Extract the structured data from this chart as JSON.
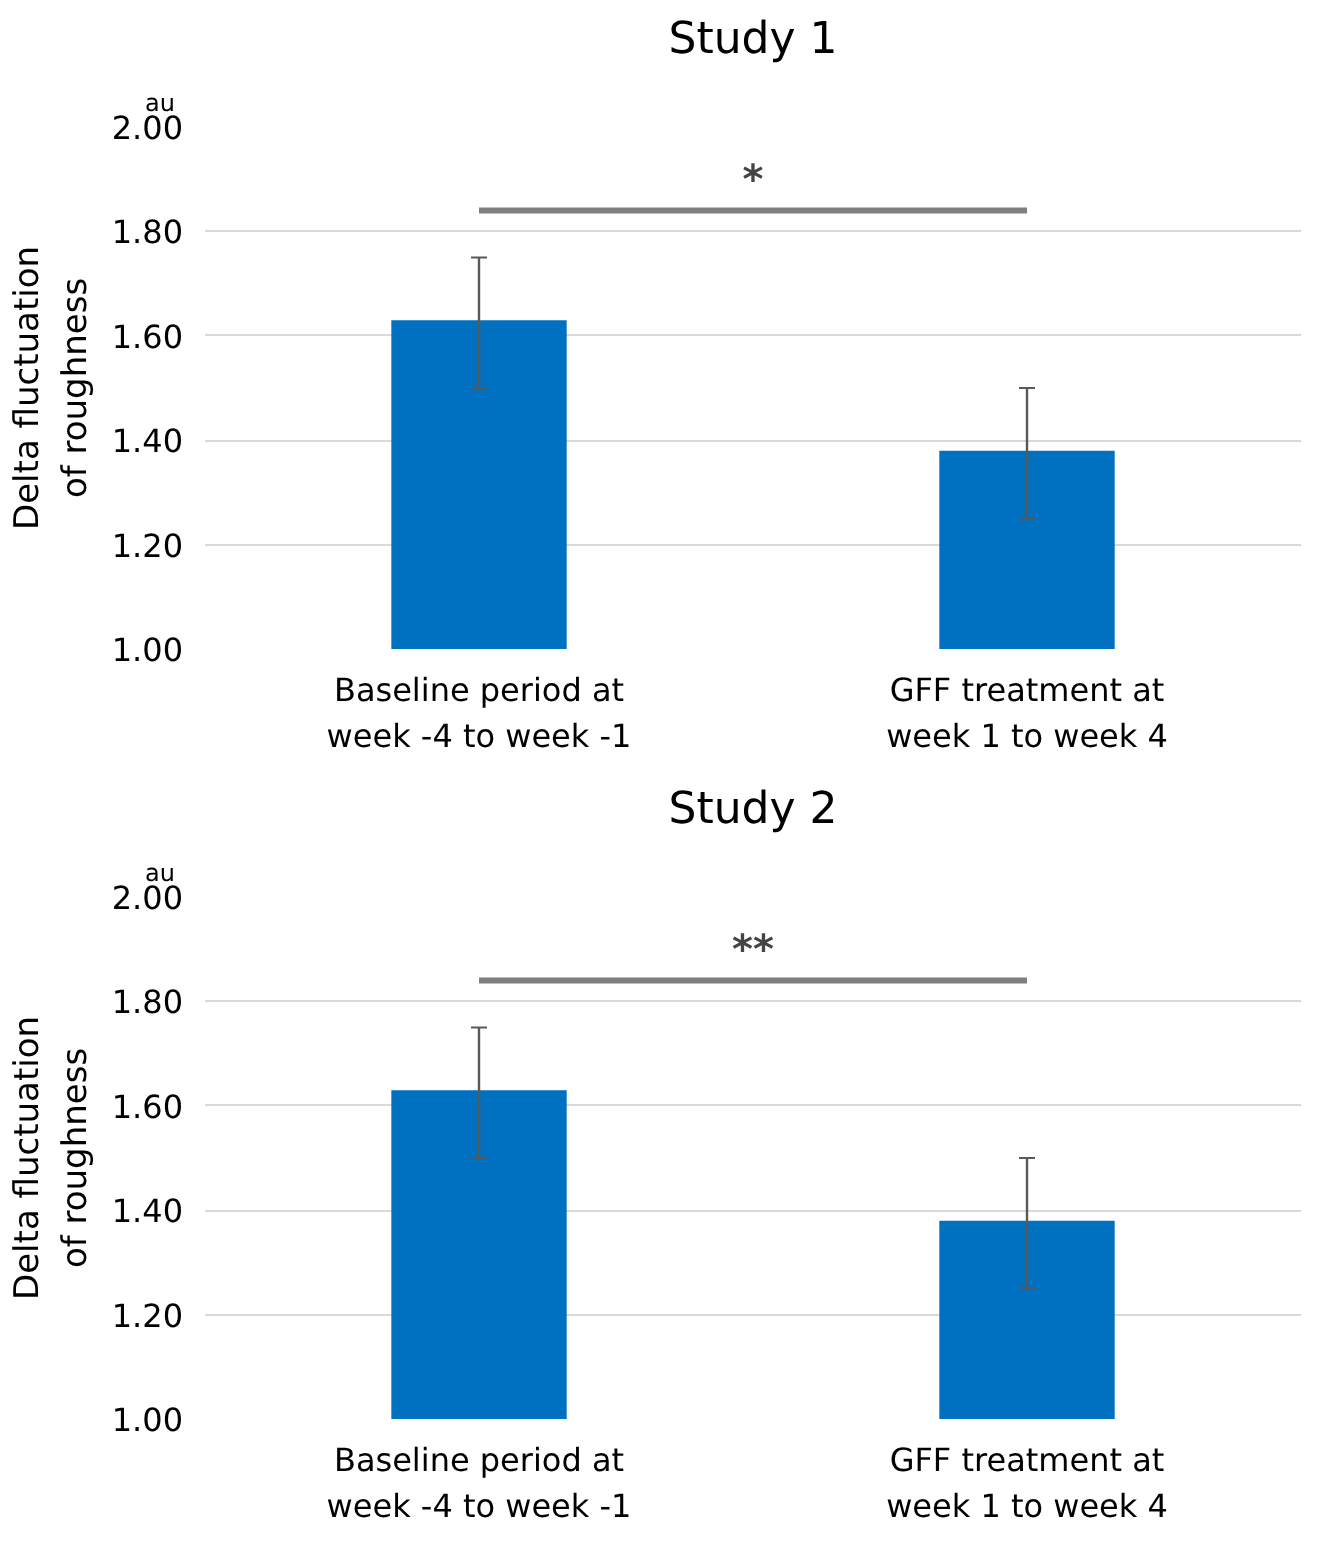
{
  "chart_data": [
    {
      "type": "bar",
      "title": "Study 1",
      "ylabel": "Delta fluctuation\nof roughness",
      "categories": [
        "Baseline period at\nweek -4 to week -1",
        "GFF treatment at\nweek 1 to week 4"
      ],
      "values": [
        1.63,
        1.38
      ],
      "errors": [
        [
          1.5,
          1.75
        ],
        [
          1.25,
          1.5
        ]
      ],
      "color": "#0070c0",
      "ylim": [
        1.0,
        2.0
      ],
      "yticks": [
        {
          "value": 1.0,
          "label": "1.00"
        },
        {
          "value": 1.2,
          "label": "1.20"
        },
        {
          "value": 1.4,
          "label": "1.40"
        },
        {
          "value": 1.6,
          "label": "1.60"
        },
        {
          "value": 1.8,
          "label": "1.80"
        },
        {
          "value": 2.0,
          "label": "2.00"
        }
      ],
      "grid": "y",
      "annotations": [
        "au",
        "*"
      ]
    },
    {
      "type": "bar",
      "title": "Study 2",
      "ylabel": "Delta fluctuation\nof roughness",
      "categories": [
        "Baseline period at\nweek -4 to week -1",
        "GFF treatment at\nweek 1 to week 4"
      ],
      "values": [
        1.63,
        1.38
      ],
      "errors": [
        [
          1.5,
          1.75
        ],
        [
          1.25,
          1.5
        ]
      ],
      "color": "#0070c0",
      "ylim": [
        1.0,
        2.0
      ],
      "yticks": [
        {
          "value": 1.0,
          "label": "1.00"
        },
        {
          "value": 1.2,
          "label": "1.20"
        },
        {
          "value": 1.4,
          "label": "1.40"
        },
        {
          "value": 1.6,
          "label": "1.60"
        },
        {
          "value": 1.8,
          "label": "1.80"
        },
        {
          "value": 2.0,
          "label": "2.00"
        }
      ],
      "grid": "y",
      "annotations": [
        "au",
        "**"
      ]
    }
  ]
}
